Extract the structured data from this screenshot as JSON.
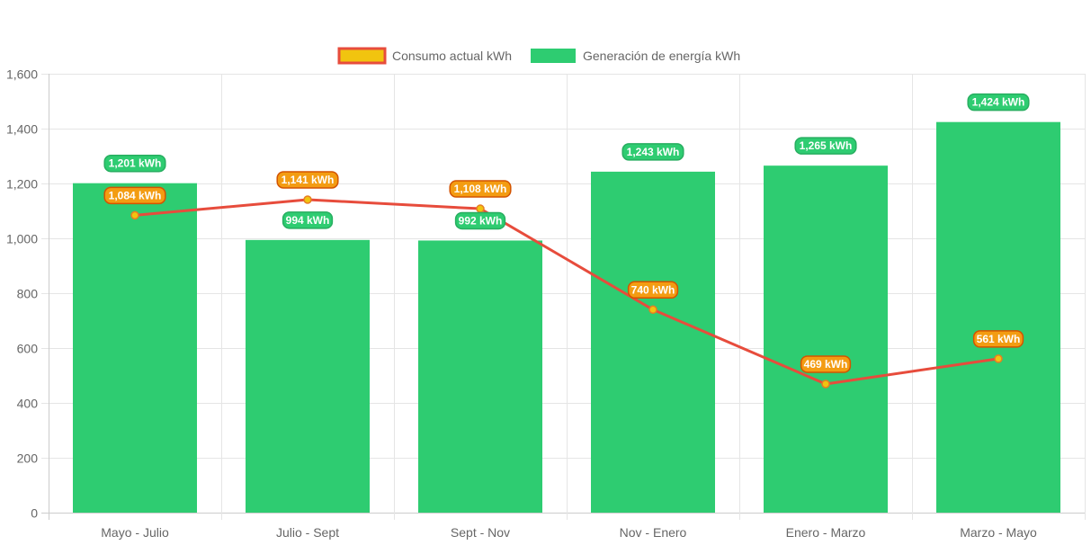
{
  "chart_data": {
    "type": "bar",
    "categories": [
      "Mayo - Julio",
      "Julio - Sept",
      "Sept - Nov",
      "Nov - Enero",
      "Enero - Marzo",
      "Marzo - Mayo"
    ],
    "series": [
      {
        "name": "Consumo actual kWh",
        "type": "line",
        "values": [
          1084,
          1141,
          1108,
          740,
          469,
          561
        ],
        "labels": [
          "1,084 kWh",
          "1,141 kWh",
          "1,108 kWh",
          "740 kWh",
          "469 kWh",
          "561 kWh"
        ],
        "color": "#e74c3c",
        "point_color": "#f1c40f"
      },
      {
        "name": "Generación de energía kWh",
        "type": "bar",
        "values": [
          1201,
          994,
          992,
          1243,
          1265,
          1424
        ],
        "labels": [
          "1,201 kWh",
          "994 kWh",
          "992 kWh",
          "1,243 kWh",
          "1,265 kWh",
          "1,424 kWh"
        ],
        "color": "#2ecc71"
      }
    ],
    "ylim": [
      0,
      1600
    ],
    "yticks": [
      0,
      200,
      400,
      600,
      800,
      1000,
      1200,
      1400,
      1600
    ],
    "ytick_labels": [
      "0",
      "200",
      "400",
      "600",
      "800",
      "1,000",
      "1,200",
      "1,400",
      "1,600"
    ],
    "grid": true,
    "legend_position": "top-center",
    "title": "",
    "xlabel": "",
    "ylabel": ""
  }
}
